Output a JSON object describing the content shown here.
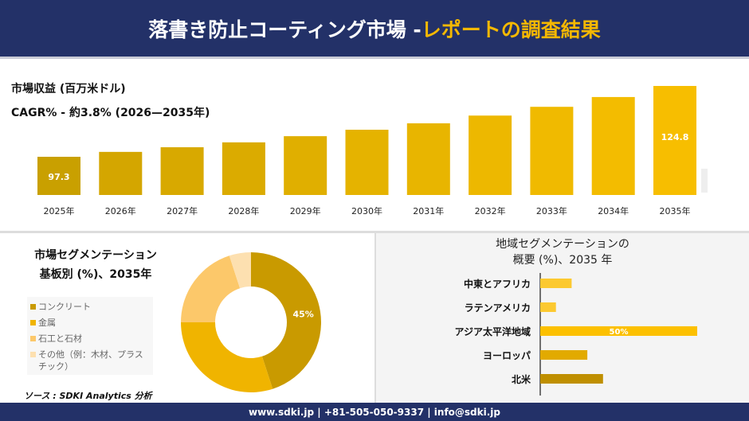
{
  "header": {
    "title_main": "落書き防止コーティング市場 -",
    "title_highlight": "レポートの調査結果"
  },
  "footer": {
    "contact": "www.sdki.jp | +81-505-050-9337 | info@sdki.jp"
  },
  "source": "ソース : SDKI Analytics 分析",
  "chart_data": [
    {
      "type": "bar",
      "title": "市場収益 (百万米ドル)",
      "subtitle": "CAGR% - 約3.8% (2026—2035年)",
      "categories": [
        "2025年",
        "2026年",
        "2027年",
        "2028年",
        "2029年",
        "2030年",
        "2031年",
        "2032年",
        "2033年",
        "2034年",
        "2035年"
      ],
      "values": [
        97.3,
        99.2,
        101.0,
        102.9,
        105.3,
        107.8,
        110.3,
        113.3,
        116.7,
        120.5,
        124.8
      ],
      "data_labels": {
        "0": "97.3",
        "10": "124.8"
      },
      "colors": [
        "#c9a000",
        "#d4a600",
        "#d8a900",
        "#dbab00",
        "#e0af00",
        "#e5b300",
        "#e8b500",
        "#edb800",
        "#f0ba00",
        "#f3bc00",
        "#f7be00"
      ]
    },
    {
      "type": "pie",
      "title": "市場セグメンテーション",
      "subtitle": "基板別 (%)、2035年",
      "labels": [
        "コンクリート",
        "金属",
        "石工と石材",
        "その他（例：木材、プラスチック）"
      ],
      "values": [
        45,
        30,
        20,
        5
      ],
      "data_labels": {
        "0": "45%"
      },
      "colors": [
        "#c99a00",
        "#f0b400",
        "#fcc86a",
        "#fde0b0"
      ]
    },
    {
      "type": "bar",
      "orientation": "horizontal",
      "title": "地域セグメンテーションの",
      "subtitle": "概要 (%)、2035 年",
      "categories": [
        "中東とアフリカ",
        "ラテンアメリカ",
        "アジア太平洋地域",
        "ヨーロッパ",
        "北米"
      ],
      "values": [
        10,
        5,
        50,
        15,
        20
      ],
      "data_labels": {
        "2": "50%"
      },
      "colors": [
        "#fcc930",
        "#fcc930",
        "#fcc000",
        "#e2aa00",
        "#bf8f00"
      ]
    }
  ]
}
